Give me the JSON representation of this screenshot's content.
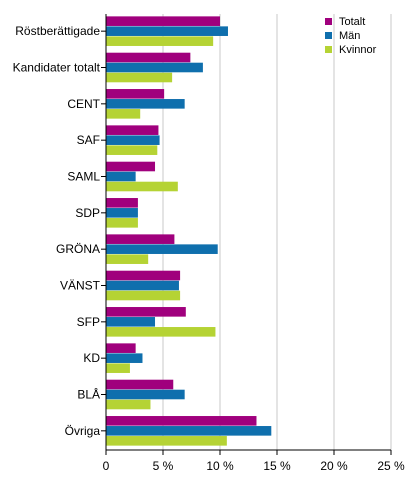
{
  "chart_data": {
    "type": "bar",
    "orientation": "horizontal",
    "categories": [
      "Röstberättigade",
      "Kandidater totalt",
      "CENT",
      "SAF",
      "SAML",
      "SDP",
      "GRÖNA",
      "VÄNST",
      "SFP",
      "KD",
      "BLÅ",
      "Övriga"
    ],
    "series": [
      {
        "name": "Totalt",
        "color": "#a0007d",
        "values": [
          10.0,
          7.4,
          5.1,
          4.6,
          4.3,
          2.8,
          6.0,
          6.5,
          7.0,
          2.6,
          5.9,
          13.2
        ]
      },
      {
        "name": "Män",
        "color": "#0f6fad",
        "values": [
          10.7,
          8.5,
          6.9,
          4.7,
          2.6,
          2.8,
          9.8,
          6.4,
          4.3,
          3.2,
          6.9,
          14.5
        ]
      },
      {
        "name": "Kvinnor",
        "color": "#b5d334",
        "values": [
          9.4,
          5.8,
          3.0,
          4.5,
          6.3,
          2.8,
          3.7,
          6.5,
          9.6,
          2.1,
          3.9,
          10.6
        ]
      }
    ],
    "xticks": [
      "0",
      "5 %",
      "10 %",
      "15 %",
      "20 %",
      "25 %"
    ],
    "xlim": [
      0,
      25
    ],
    "title": "",
    "xlabel": "",
    "ylabel": "",
    "grid": "vertical",
    "legend_position": "top-right"
  }
}
